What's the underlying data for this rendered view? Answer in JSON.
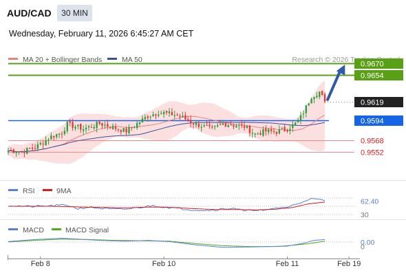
{
  "header": {
    "symbol": "AUD/CAD",
    "timeframe": "30 MIN",
    "datetime": "Wednesday, February 11, 2026 6:45:27 AM CET"
  },
  "colors": {
    "candle_up": "#2e9e3e",
    "candle_down": "#e53935",
    "bollinger_fill": "#fbd5d5",
    "ma20": "#f08080",
    "ma50": "#3a4f9c",
    "resistance": "#5aa016",
    "pivot": "#1565e6",
    "support": "#f08a8a",
    "current_price": "#222222",
    "arrow": "#2f5aa6",
    "rsi": "#5a7fd6",
    "rsi_ma": "#d81b1b",
    "macd": "#5a7fd6",
    "macd_signal": "#4caf1a"
  },
  "chart_data": [
    {
      "type": "candlestick",
      "title": "",
      "legend": [
        {
          "name": "MA 20 + Bollinger Bands",
          "color": "#f08080"
        },
        {
          "name": "MA 50",
          "color": "#3a4f9c"
        }
      ],
      "legend_placement": "top-left",
      "attribution": "Research © 2026 Trading Central",
      "ylim": [
        0.9515,
        0.969
      ],
      "x_ticks": [
        {
          "label": "Feb 8",
          "index": 12
        },
        {
          "label": "Feb 10",
          "index": 58
        },
        {
          "label": "Feb 11",
          "index": 104
        },
        {
          "label": "Feb 19",
          "index": 127
        }
      ],
      "x_count": 130,
      "path": [
        [
          0,
          0.9554
        ],
        [
          5,
          0.9553
        ],
        [
          10,
          0.9558
        ],
        [
          16,
          0.9573
        ],
        [
          20,
          0.9578
        ],
        [
          22,
          0.9589
        ],
        [
          28,
          0.9583
        ],
        [
          34,
          0.959
        ],
        [
          40,
          0.9584
        ],
        [
          44,
          0.958
        ],
        [
          48,
          0.959
        ],
        [
          52,
          0.96
        ],
        [
          56,
          0.9605
        ],
        [
          60,
          0.9603
        ],
        [
          64,
          0.96
        ],
        [
          68,
          0.9592
        ],
        [
          72,
          0.9587
        ],
        [
          76,
          0.9582
        ],
        [
          80,
          0.959
        ],
        [
          84,
          0.9588
        ],
        [
          88,
          0.9586
        ],
        [
          92,
          0.9576
        ],
        [
          96,
          0.958
        ],
        [
          100,
          0.9579
        ],
        [
          104,
          0.9583
        ],
        [
          108,
          0.9592
        ],
        [
          110,
          0.9605
        ],
        [
          113,
          0.9626
        ],
        [
          116,
          0.9632
        ],
        [
          118,
          0.9619
        ]
      ],
      "levels": [
        {
          "value": 0.967,
          "label": "0.9670",
          "type": "resistance",
          "tag": "filled"
        },
        {
          "value": 0.9654,
          "label": "0.9654",
          "type": "resistance",
          "tag": "filled"
        },
        {
          "value": 0.9619,
          "label": "0.9619",
          "type": "current",
          "tag": "filled"
        },
        {
          "value": 0.9594,
          "label": "0.9594",
          "type": "pivot",
          "tag": "filled"
        },
        {
          "value": 0.9568,
          "label": "0.9568",
          "type": "support",
          "tag": "text"
        },
        {
          "value": 0.9552,
          "label": "0.9552",
          "type": "support",
          "tag": "text"
        }
      ],
      "arrow": {
        "from": [
          118,
          0.9619
        ],
        "to": [
          126,
          0.967
        ],
        "direction": "up"
      }
    },
    {
      "type": "line",
      "series": [
        {
          "name": "RSI",
          "color": "#5a7fd6"
        },
        {
          "name": "9MA",
          "color": "#d81b1b"
        }
      ],
      "ylim": [
        25,
        75
      ],
      "grid_levels": [
        70,
        50,
        30
      ],
      "tick_labels": [
        {
          "label": "62.40",
          "value": 62.4
        },
        {
          "label": "30",
          "value": 30
        }
      ],
      "rsi_path": [
        [
          0,
          52
        ],
        [
          8,
          49
        ],
        [
          16,
          51
        ],
        [
          22,
          53
        ],
        [
          26,
          44
        ],
        [
          30,
          48
        ],
        [
          36,
          44
        ],
        [
          42,
          42
        ],
        [
          48,
          46
        ],
        [
          54,
          52
        ],
        [
          58,
          48
        ],
        [
          62,
          46
        ],
        [
          68,
          42
        ],
        [
          74,
          40
        ],
        [
          78,
          42
        ],
        [
          84,
          46
        ],
        [
          88,
          38
        ],
        [
          92,
          42
        ],
        [
          96,
          39
        ],
        [
          100,
          46
        ],
        [
          104,
          48
        ],
        [
          108,
          56
        ],
        [
          112,
          68
        ],
        [
          116,
          66
        ],
        [
          118,
          62
        ]
      ],
      "rsi_ma_path": [
        [
          0,
          50
        ],
        [
          8,
          50
        ],
        [
          16,
          50
        ],
        [
          22,
          49
        ],
        [
          28,
          48
        ],
        [
          36,
          47
        ],
        [
          44,
          46
        ],
        [
          52,
          48
        ],
        [
          58,
          48
        ],
        [
          64,
          46
        ],
        [
          70,
          44
        ],
        [
          78,
          42
        ],
        [
          86,
          42
        ],
        [
          92,
          41
        ],
        [
          100,
          43
        ],
        [
          106,
          47
        ],
        [
          112,
          56
        ],
        [
          118,
          60
        ]
      ]
    },
    {
      "type": "line",
      "series": [
        {
          "name": "MACD",
          "color": "#5a7fd6"
        },
        {
          "name": "MACD Signal",
          "color": "#4caf1a"
        }
      ],
      "ylim": [
        -0.003,
        0.002
      ],
      "grid_levels": [
        0.0
      ],
      "tick_labels": [
        {
          "label": "0.00",
          "value": 0.0
        },
        {
          "label": "0",
          "value": -0.0011
        }
      ],
      "macd_path": [
        [
          0,
          0.0001
        ],
        [
          10,
          0.0006
        ],
        [
          20,
          0.0009
        ],
        [
          26,
          0.0007
        ],
        [
          34,
          0.0004
        ],
        [
          44,
          0.0002
        ],
        [
          52,
          0.0004
        ],
        [
          60,
          0.0001
        ],
        [
          70,
          -0.0007
        ],
        [
          80,
          -0.0013
        ],
        [
          90,
          -0.0012
        ],
        [
          98,
          -0.0011
        ],
        [
          104,
          -0.001
        ],
        [
          110,
          -0.0003
        ],
        [
          114,
          0.0004
        ],
        [
          118,
          0.0006
        ]
      ],
      "signal_path": [
        [
          0,
          0.0
        ],
        [
          10,
          0.0004
        ],
        [
          20,
          0.0007
        ],
        [
          30,
          0.0006
        ],
        [
          40,
          0.0004
        ],
        [
          50,
          0.0003
        ],
        [
          60,
          0.0002
        ],
        [
          70,
          -0.0004
        ],
        [
          80,
          -0.0009
        ],
        [
          90,
          -0.0011
        ],
        [
          100,
          -0.0011
        ],
        [
          106,
          -0.0008
        ],
        [
          112,
          -0.0004
        ],
        [
          118,
          0.0002
        ]
      ]
    }
  ]
}
